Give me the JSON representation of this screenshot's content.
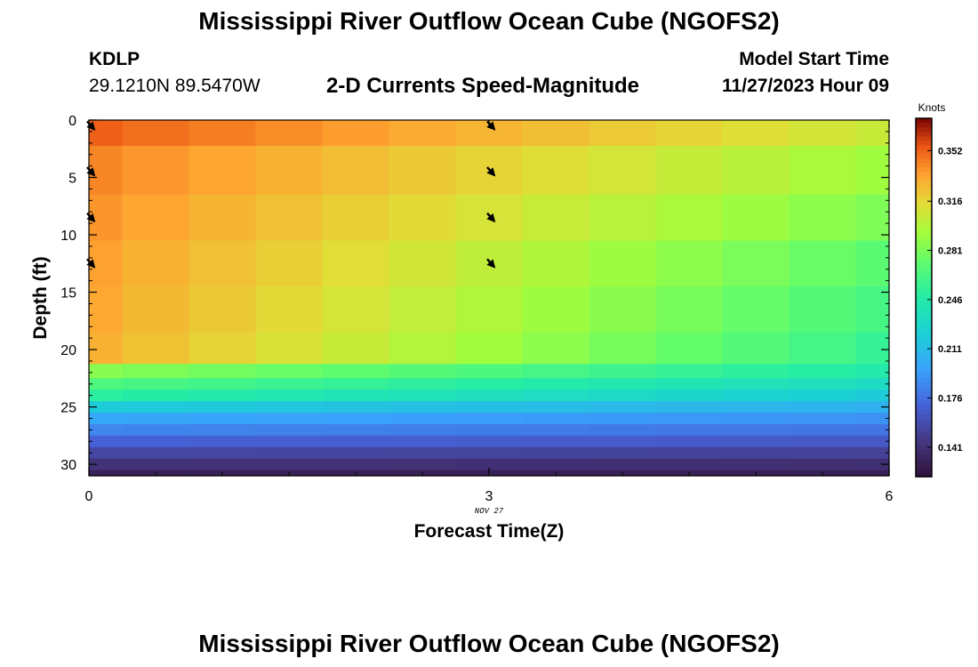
{
  "header": {
    "title": "Mississippi River Outflow Ocean Cube (NGOFS2)",
    "station": "KDLP",
    "coordinates": "29.1210N  89.5470W",
    "subtitle": "2-D Currents Speed-Magnitude",
    "model_start_label": "Model Start Time",
    "model_start_value": "11/27/2023 Hour 09"
  },
  "footer": {
    "title": "Mississippi River Outflow Ocean Cube (NGOFS2)"
  },
  "chart_data": {
    "type": "heatmap",
    "xlabel": "Forecast Time(Z)",
    "ylabel": "Depth (ft)",
    "date_label": "NOV 27",
    "xlim": [
      0,
      6
    ],
    "ylim": [
      31,
      0
    ],
    "x_ticks": [
      0,
      3,
      6
    ],
    "y_ticks": [
      0,
      5,
      10,
      15,
      20,
      25,
      30
    ],
    "colorbar": {
      "label": "Knots",
      "range": [
        0.12,
        0.375
      ],
      "ticks": [
        0.141,
        0.176,
        0.211,
        0.246,
        0.281,
        0.316,
        0.352
      ]
    },
    "columns_x": [
      0,
      0.5,
      1,
      1.5,
      2,
      2.5,
      3,
      3.5,
      4,
      4.5,
      5,
      5.5,
      6
    ],
    "depth_levels": [
      0,
      4.5,
      8.5,
      12.5,
      16.5,
      20.5,
      22,
      23,
      24,
      25,
      26,
      27,
      28,
      29,
      30,
      31
    ],
    "speed_profile_start": [
      0.352,
      0.342,
      0.338,
      0.335,
      0.333,
      0.33,
      0.285,
      0.265,
      0.25,
      0.22,
      0.2,
      0.185,
      0.17,
      0.155,
      0.142,
      0.13
    ],
    "speed_profile_end": [
      0.305,
      0.292,
      0.282,
      0.27,
      0.262,
      0.255,
      0.245,
      0.232,
      0.22,
      0.205,
      0.19,
      0.178,
      0.165,
      0.152,
      0.14,
      0.13
    ],
    "vectors": [
      {
        "x": 0,
        "depth": 0.5
      },
      {
        "x": 0,
        "depth": 4.5
      },
      {
        "x": 0,
        "depth": 8.5
      },
      {
        "x": 0,
        "depth": 12.5
      },
      {
        "x": 3,
        "depth": 0.5
      },
      {
        "x": 3,
        "depth": 4.5
      },
      {
        "x": 3,
        "depth": 8.5
      },
      {
        "x": 3,
        "depth": 12.5
      }
    ]
  }
}
